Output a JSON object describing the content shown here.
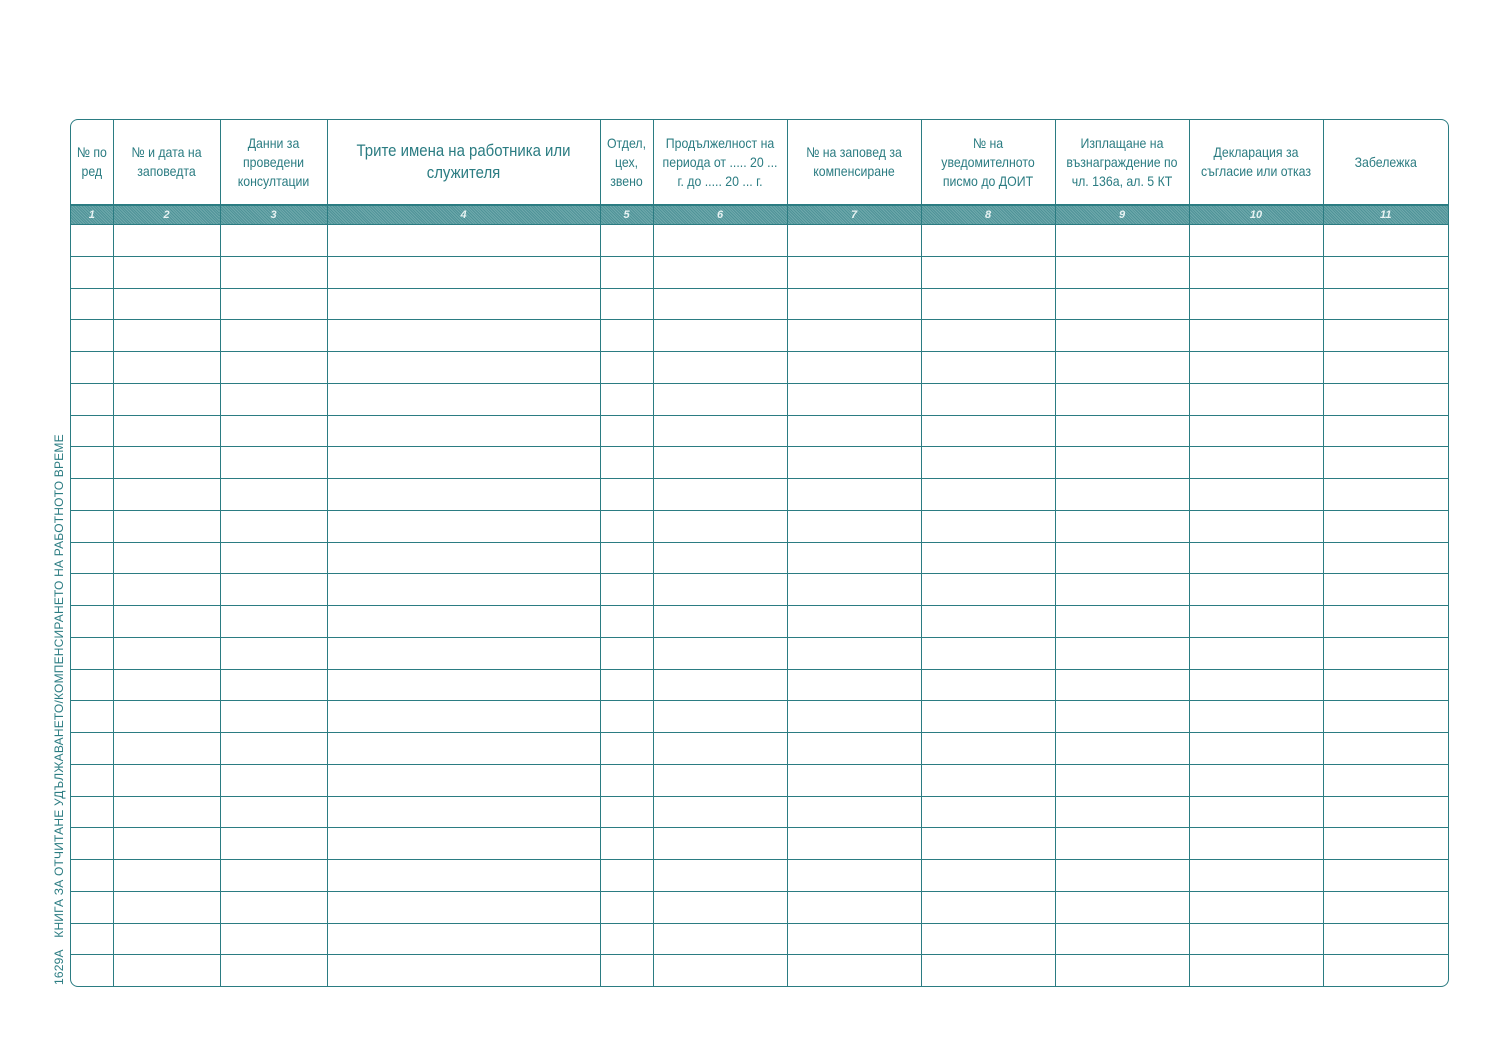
{
  "form_code": "1629А",
  "form_title": "КНИГА ЗА ОТЧИТАНЕ УДЪЛЖАВАНЕТО/КОМПЕНСИРАНЕТО НА РАБОТНОТО ВРЕМЕ",
  "accent_color": "#2b7c82",
  "columns": [
    {
      "header": "№ по ред",
      "number": "1"
    },
    {
      "header": "№ и дата на заповедта",
      "number": "2"
    },
    {
      "header": "Данни за проведени консултации",
      "number": "3"
    },
    {
      "header": "Трите имена на работника или служителя",
      "number": "4"
    },
    {
      "header": "Отдел, цех, звено",
      "number": "5"
    },
    {
      "header": "Продължелност на периода от ..... 20 ... г. до ..... 20 ... г.",
      "number": "6"
    },
    {
      "header": "№ на заповед за компенсиране",
      "number": "7"
    },
    {
      "header": "№ на уведомителното писмо до ДОИТ",
      "number": "8"
    },
    {
      "header": "Изплащане на възнаграждение по чл. 136а, ал. 5 КТ",
      "number": "9"
    },
    {
      "header": "Декларация за съгласие или отказ",
      "number": "10"
    },
    {
      "header": "Забележка",
      "number": "11"
    }
  ]
}
